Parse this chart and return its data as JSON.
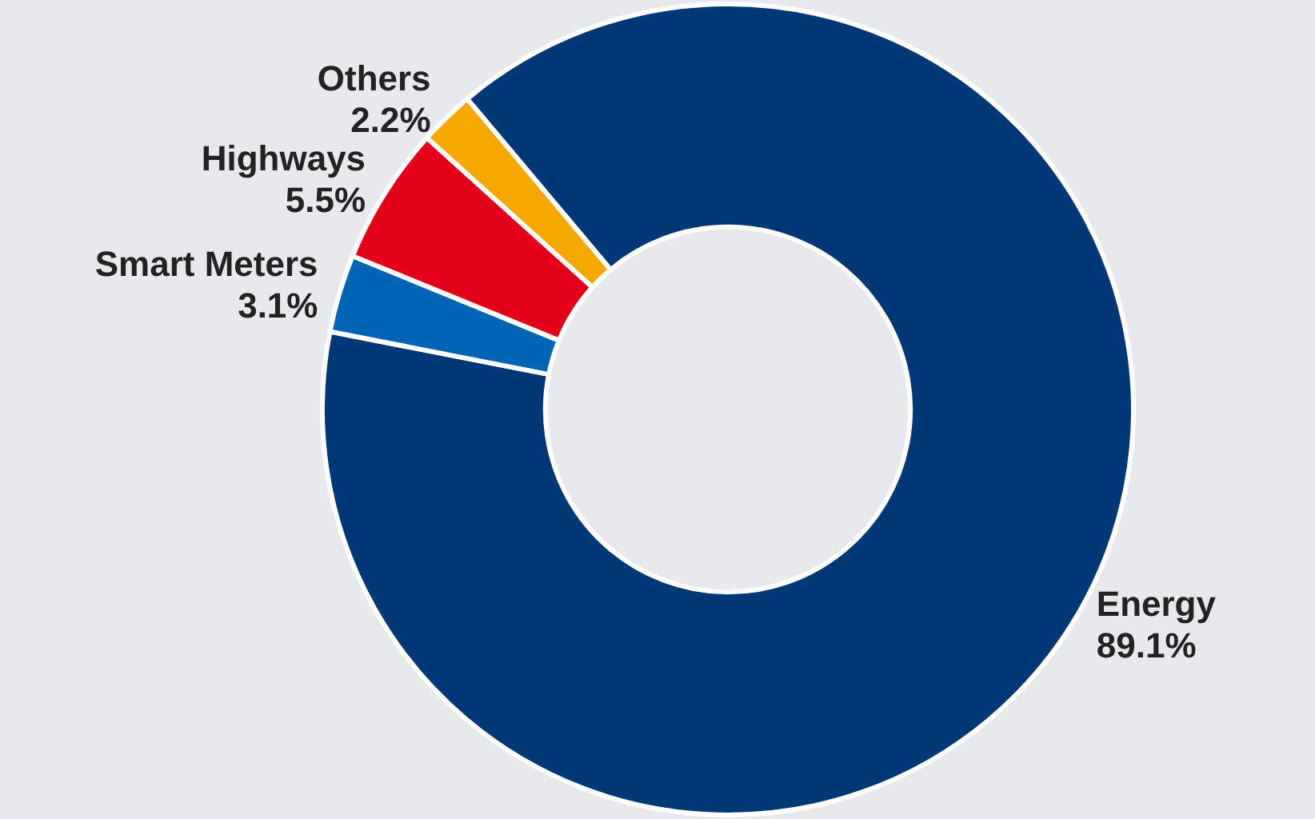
{
  "chart_data": {
    "type": "donut",
    "categories": [
      "Energy",
      "Smart Meters",
      "Highways",
      "Others"
    ],
    "values": [
      89.1,
      3.1,
      5.5,
      2.2
    ],
    "colors": [
      "#003876",
      "#0064b4",
      "#e2001a",
      "#f5a800"
    ],
    "value_labels": [
      "89.1%",
      "3.1%",
      "5.5%",
      "2.2%"
    ],
    "legend": false
  }
}
